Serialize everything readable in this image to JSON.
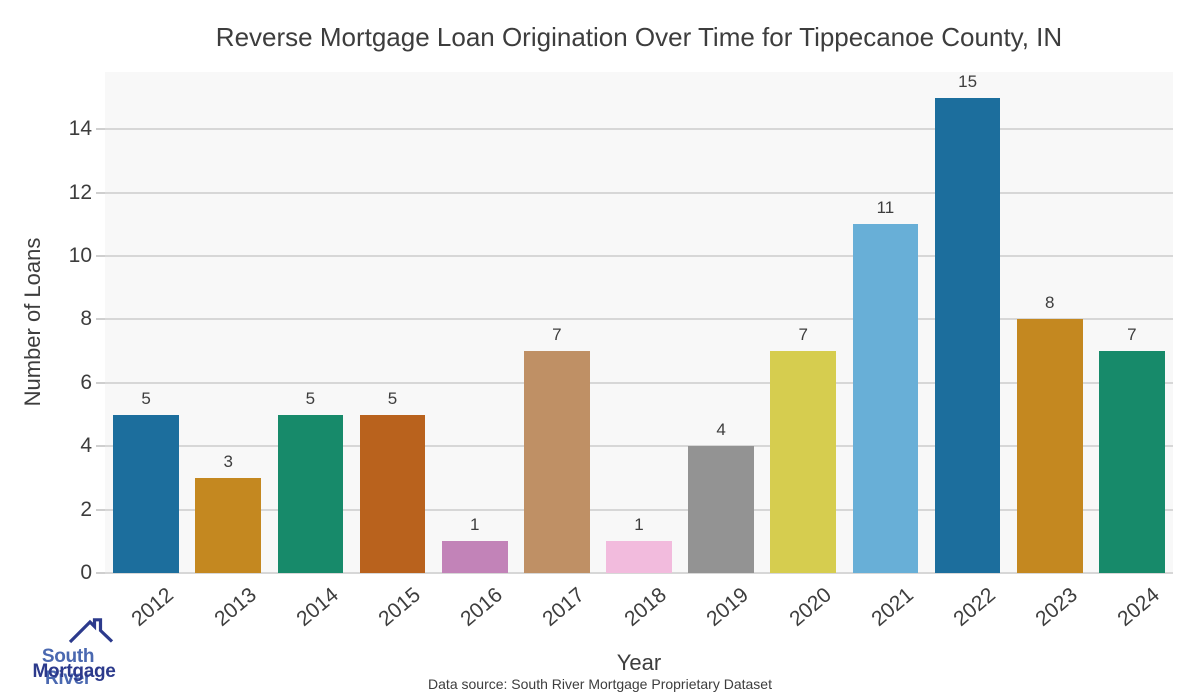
{
  "chart_data": {
    "type": "bar",
    "title": "Reverse Mortgage Loan Origination Over Time for Tippecanoe County, IN",
    "xlabel": "Year",
    "ylabel": "Number of Loans",
    "categories": [
      "2012",
      "2013",
      "2014",
      "2015",
      "2016",
      "2017",
      "2018",
      "2019",
      "2020",
      "2021",
      "2022",
      "2023",
      "2024"
    ],
    "values": [
      5,
      3,
      5,
      5,
      1,
      7,
      1,
      4,
      7,
      11,
      15,
      8,
      7
    ],
    "bar_colors": [
      "#1c6e9d",
      "#c48820",
      "#178a6a",
      "#b9621d",
      "#c283b8",
      "#bf9065",
      "#f2bbdd",
      "#939393",
      "#d6cd4f",
      "#68afd7",
      "#1c6e9d",
      "#c48820",
      "#178a6a"
    ],
    "yticks": [
      0,
      2,
      4,
      6,
      8,
      10,
      12,
      14
    ],
    "ylim": [
      0,
      15.8
    ],
    "grid": true,
    "legend": "none",
    "plot_bg_color": "#f8f8f8",
    "grid_color": "#d7d7d7",
    "tick_color": "#cfcfcf",
    "text_color": "#3d3d3d"
  },
  "footer": {
    "data_source": "Data source: South River Mortgage Proprietary Dataset"
  },
  "logo": {
    "line1": "South River",
    "line2": "Mortgage",
    "line1_color": "#4a68b0",
    "line2_color": "#2c3a8c",
    "roof_color": "#2c3a8c"
  }
}
